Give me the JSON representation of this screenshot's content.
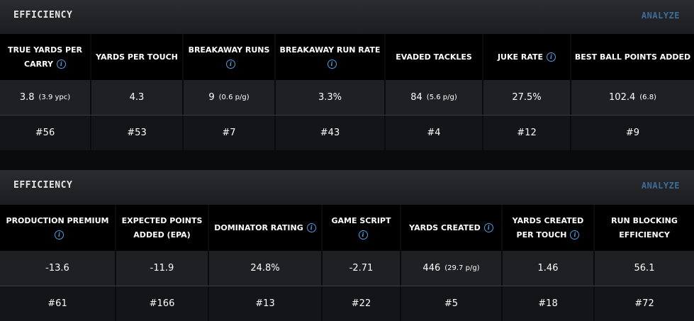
{
  "panels": [
    {
      "title": "EFFICIENCY",
      "action": "ANALYZE",
      "columns": [
        {
          "label": "TRUE YARDS PER CARRY",
          "info": true,
          "value": "3.8",
          "sub": "(3.9 ypc)",
          "rank": "#56"
        },
        {
          "label": "YARDS PER TOUCH",
          "info": false,
          "value": "4.3",
          "sub": "",
          "rank": "#53"
        },
        {
          "label": "BREAKAWAY RUNS",
          "info": true,
          "value": "9",
          "sub": "(0.6 p/g)",
          "rank": "#7"
        },
        {
          "label": "BREAKAWAY RUN RATE",
          "info": true,
          "value": "3.3%",
          "sub": "",
          "rank": "#43"
        },
        {
          "label": "EVADED TACKLES",
          "info": false,
          "value": "84",
          "sub": "(5.6 p/g)",
          "rank": "#4"
        },
        {
          "label": "JUKE RATE",
          "info": true,
          "value": "27.5%",
          "sub": "",
          "rank": "#12"
        },
        {
          "label": "BEST BALL POINTS ADDED",
          "info": false,
          "value": "102.4",
          "sub": "(6.8)",
          "rank": "#9"
        }
      ]
    },
    {
      "title": "EFFICIENCY",
      "action": "ANALYZE",
      "columns": [
        {
          "label": "PRODUCTION PREMIUM",
          "info": true,
          "value": "-13.6",
          "sub": "",
          "rank": "#61"
        },
        {
          "label": "EXPECTED POINTS ADDED (EPA)",
          "info": false,
          "value": "-11.9",
          "sub": "",
          "rank": "#166"
        },
        {
          "label": "DOMINATOR RATING",
          "info": true,
          "value": "24.8%",
          "sub": "",
          "rank": "#13"
        },
        {
          "label": "GAME SCRIPT",
          "info": true,
          "value": "-2.71",
          "sub": "",
          "rank": "#22"
        },
        {
          "label": "YARDS CREATED",
          "info": true,
          "value": "446",
          "sub": "(29.7 p/g)",
          "rank": "#5"
        },
        {
          "label": "YARDS CREATED PER TOUCH",
          "info": true,
          "value": "1.46",
          "sub": "",
          "rank": "#18"
        },
        {
          "label": "RUN BLOCKING EFFICIENCY",
          "info": false,
          "value": "56.1",
          "sub": "",
          "rank": "#72"
        }
      ]
    }
  ]
}
